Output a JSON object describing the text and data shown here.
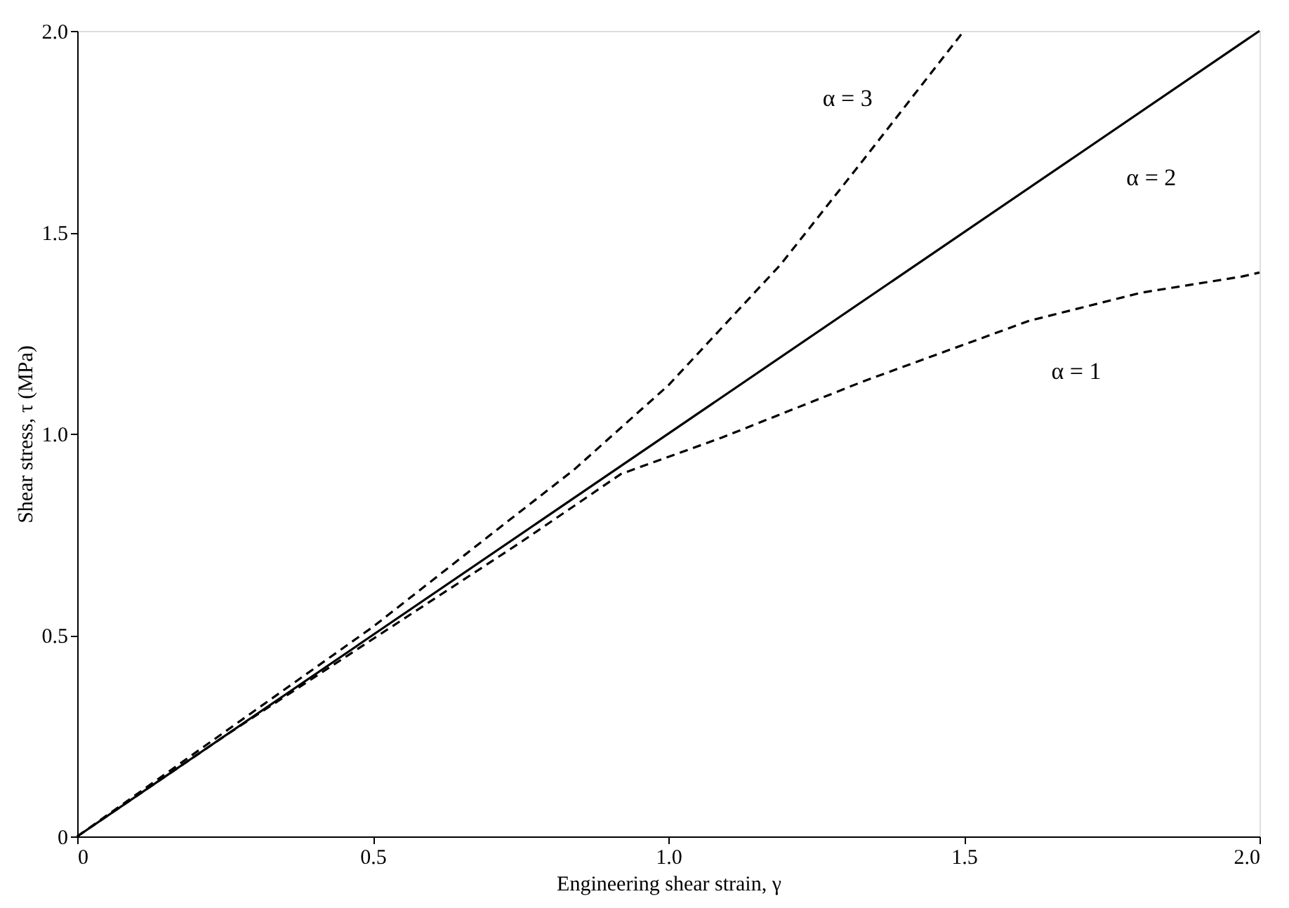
{
  "chart_data": {
    "type": "line",
    "xlabel": "Engineering shear strain, γ",
    "ylabel": "Shear stress, τ (MPa)",
    "xlim": [
      0,
      2.0
    ],
    "ylim": [
      0,
      2.0
    ],
    "xticks": [
      0,
      {
        "value": 0.5,
        "label": "0.5"
      },
      {
        "value": 1.0,
        "label": "1.0"
      },
      {
        "value": 1.5,
        "label": "1.5"
      },
      {
        "value": 2.0,
        "label": "2.0"
      }
    ],
    "yticks": [
      0,
      {
        "value": 0.5,
        "label": "0.5"
      },
      {
        "value": 1.0,
        "label": "1.0"
      },
      {
        "value": 1.5,
        "label": "1.5"
      },
      {
        "value": 2.0,
        "label": "2.0"
      }
    ],
    "series": [
      {
        "name": "α = 3",
        "color": "#000000",
        "line_style": "dashed",
        "x": [
          0,
          0.25,
          0.5,
          0.7,
          0.84,
          1.0,
          1.19,
          1.33,
          1.5
        ],
        "values": [
          0,
          0.26,
          0.52,
          0.75,
          0.91,
          1.12,
          1.42,
          1.68,
          2.0
        ]
      },
      {
        "name": "α = 2",
        "color": "#000000",
        "line_style": "solid",
        "x": [
          0,
          2.0
        ],
        "values": [
          0,
          2.0
        ]
      },
      {
        "name": "α = 1",
        "color": "#000000",
        "line_style": "dashed",
        "x": [
          0,
          0.25,
          0.5,
          0.75,
          0.92,
          1.09,
          1.33,
          1.61,
          1.8,
          1.97,
          2.0
        ],
        "values": [
          0,
          0.25,
          0.49,
          0.73,
          0.9,
          0.99,
          1.13,
          1.28,
          1.35,
          1.39,
          1.4
        ]
      }
    ]
  }
}
